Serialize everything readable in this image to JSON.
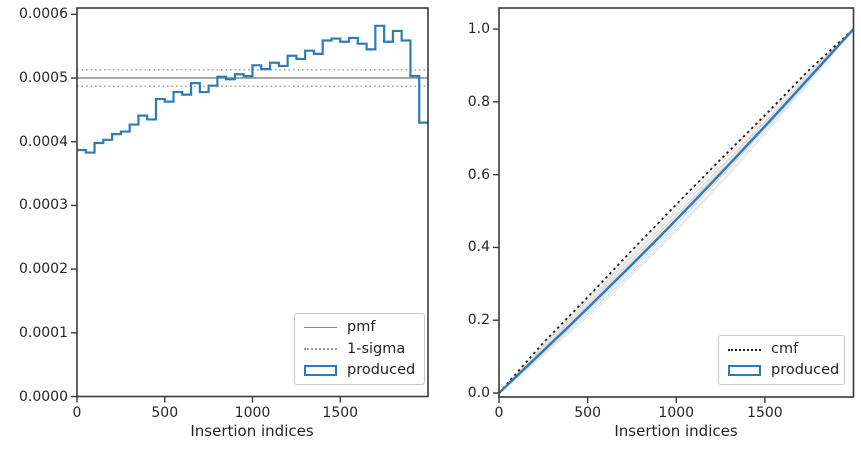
{
  "figure": {
    "background": "#ffffff"
  },
  "colors": {
    "produced_blue": "#2d7cb8",
    "pmf_gray": "#8a8a8a",
    "sigma_gray": "#9e9e9e",
    "cmf_black": "#1c1c1c",
    "sample_gray": "#d7d7d7",
    "spine": "#3a3a3a",
    "text": "#262626"
  },
  "chart_data": [
    {
      "id": "pmf-panel",
      "type": "bar",
      "subtype": "step-histogram-outline",
      "title": "",
      "xlabel": "Insertion indices",
      "ylabel": "",
      "xlim": [
        0,
        2000
      ],
      "ylim": [
        0,
        0.00061
      ],
      "grid": false,
      "xticks": [
        0,
        500,
        1000,
        1500
      ],
      "xtick_labels": [
        "0",
        "500",
        "1000",
        "1500"
      ],
      "yticks": [
        0,
        0.0001,
        0.0002,
        0.0003,
        0.0004,
        0.0005,
        0.0006
      ],
      "ytick_labels": [
        "0.0000",
        "0.0001",
        "0.0002",
        "0.0003",
        "0.0004",
        "0.0005",
        "0.0006"
      ],
      "bin_start": 0,
      "bin_width": 50,
      "produced_pmf": [
        0.000387,
        0.000383,
        0.000398,
        0.000403,
        0.000412,
        0.000416,
        0.000427,
        0.000441,
        0.000435,
        0.000467,
        0.000463,
        0.000478,
        0.000474,
        0.000492,
        0.000478,
        0.000488,
        0.000502,
        0.000498,
        0.000506,
        0.000503,
        0.00052,
        0.000514,
        0.000524,
        0.000519,
        0.000535,
        0.00053,
        0.000543,
        0.000538,
        0.000559,
        0.000562,
        0.000557,
        0.000563,
        0.000554,
        0.000545,
        0.000582,
        0.000557,
        0.000574,
        0.000559,
        0.000503,
        0.00043
      ],
      "pmf_value": 0.0005,
      "sigma_upper": 0.000513,
      "sigma_lower": 0.000487,
      "legend": {
        "position": "lower right",
        "entries": [
          {
            "label": "pmf",
            "style": "solid-gray-line"
          },
          {
            "label": "1-sigma",
            "style": "dotted-gray-line"
          },
          {
            "label": "produced",
            "style": "blue-rect-outline"
          }
        ]
      }
    },
    {
      "id": "cmf-panel",
      "type": "line",
      "title": "",
      "xlabel": "Insertion indices",
      "ylabel": "",
      "xlim": [
        0,
        2000
      ],
      "ylim": [
        -0.011,
        1.058
      ],
      "grid": false,
      "xticks": [
        0,
        500,
        1000,
        1500
      ],
      "xtick_labels": [
        "0",
        "500",
        "1000",
        "1500"
      ],
      "yticks": [
        0.0,
        0.2,
        0.4,
        0.6,
        0.8,
        1.0
      ],
      "ytick_labels": [
        "0.0",
        "0.2",
        "0.4",
        "0.6",
        "0.8",
        "1.0"
      ],
      "cmf_line": {
        "x": [
          0,
          250,
          500,
          750,
          1000,
          1250,
          1500,
          1750,
          2000
        ],
        "y": [
          0,
          0.138,
          0.263,
          0.392,
          0.518,
          0.642,
          0.763,
          0.888,
          1.0
        ]
      },
      "produced_line": {
        "x": [
          0,
          125,
          250,
          375,
          500,
          625,
          750,
          875,
          1000,
          1125,
          1250,
          1375,
          1500,
          1625,
          1750,
          1875,
          2000
        ],
        "y": [
          0,
          0.058,
          0.116,
          0.174,
          0.233,
          0.293,
          0.353,
          0.414,
          0.476,
          0.539,
          0.603,
          0.668,
          0.733,
          0.799,
          0.866,
          0.933,
          1.0
        ]
      },
      "sample_curve_deviations": [
        0.016,
        0.008,
        0.001,
        -0.005,
        -0.009,
        -0.013,
        -0.016,
        -0.019,
        -0.021,
        -0.024,
        -0.026,
        -0.028,
        -0.031,
        -0.034,
        -0.037,
        -0.041,
        -0.047,
        -0.056
      ],
      "legend": {
        "position": "lower right",
        "entries": [
          {
            "label": "cmf",
            "style": "dotted-black-line"
          },
          {
            "label": "produced",
            "style": "blue-rect-outline"
          }
        ]
      }
    }
  ]
}
